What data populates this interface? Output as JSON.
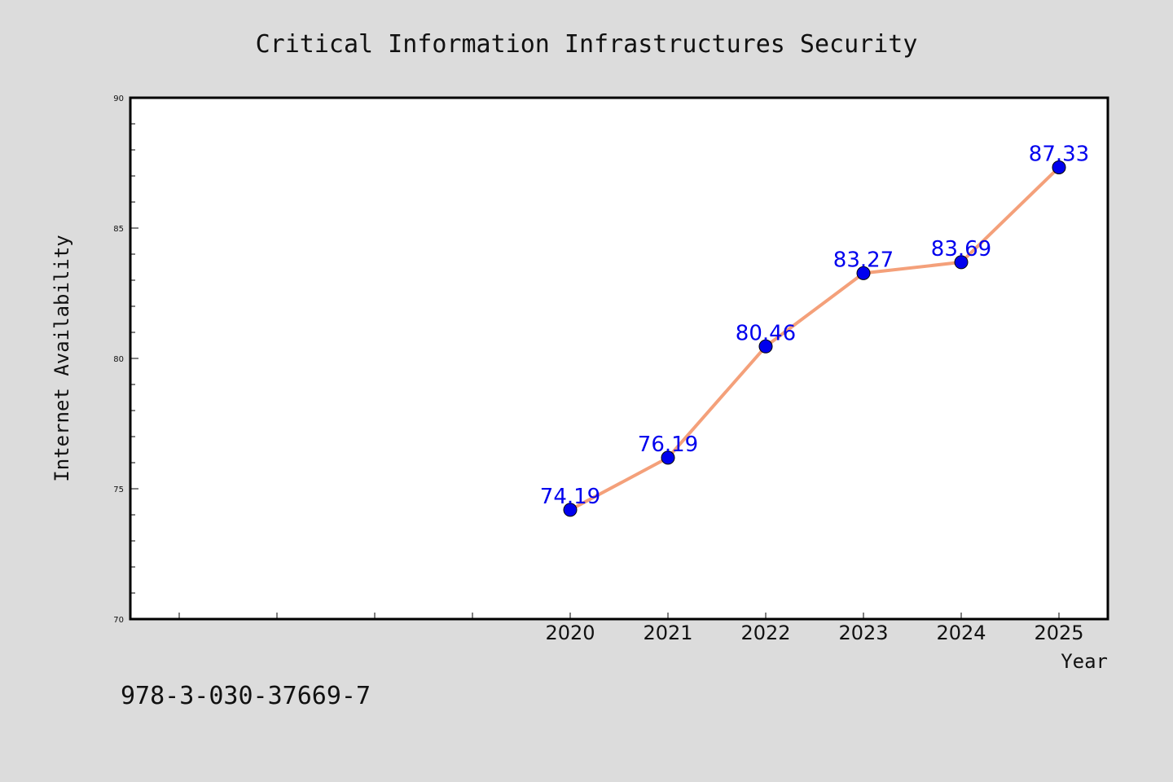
{
  "chart_data": {
    "type": "line",
    "title": "Critical Information Infrastructures Security",
    "xlabel": "Year",
    "ylabel": "Internet Availability",
    "categories": [
      "",
      "",
      "",
      "",
      "2020",
      "2021",
      "2022",
      "2023",
      "2024",
      "2025"
    ],
    "x": [
      "2020",
      "2021",
      "2022",
      "2023",
      "2024",
      "2025"
    ],
    "series": [
      {
        "values": [
          74.19,
          76.19,
          80.46,
          83.27,
          83.69,
          87.33
        ],
        "labels": [
          "74.19",
          "76.19",
          "80.46",
          "83.27",
          "83.69",
          "87.33"
        ],
        "line_color": "#f4a07a",
        "marker_color": "#0000ee",
        "label_color": "#0000ee"
      }
    ],
    "ylim": [
      70,
      90
    ],
    "yticks": [
      "70",
      "75",
      "80",
      "85",
      "90"
    ],
    "grid": false,
    "legend": "none"
  },
  "footer": {
    "isbn": "978-3-030-37669-7"
  },
  "colors": {
    "background": "#dcdcdc",
    "plot_background": "#ffffff",
    "axis": "#000000"
  }
}
